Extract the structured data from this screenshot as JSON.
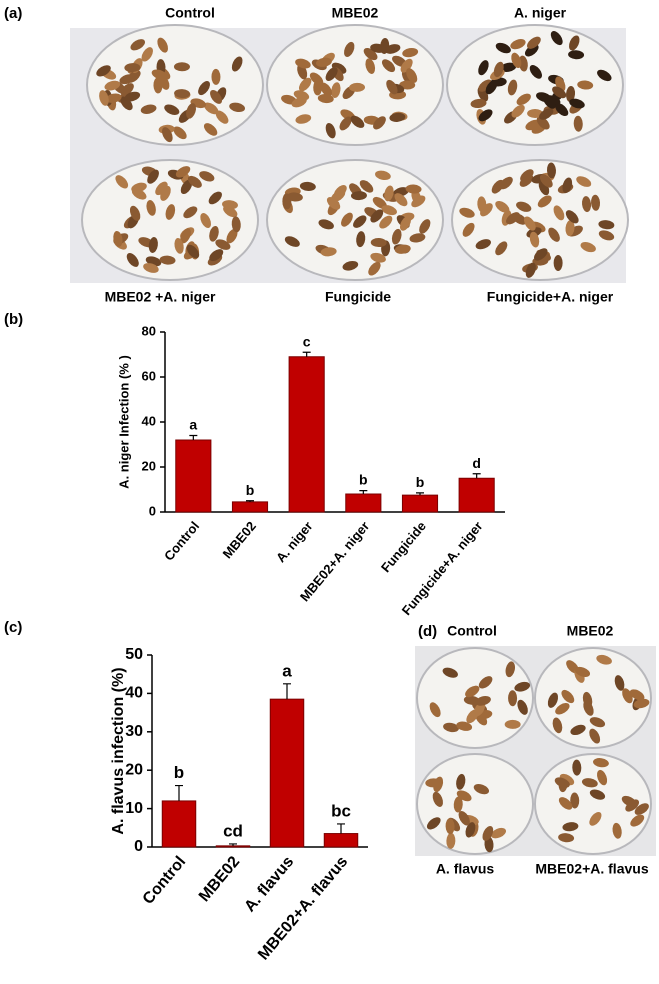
{
  "panel_a": {
    "label": "(a)",
    "top_labels": [
      "Control",
      "MBE02",
      "A. niger"
    ],
    "bottom_labels": [
      "MBE02 +A. niger",
      "Fungicide",
      "Fungicide+A. niger"
    ]
  },
  "panel_b": {
    "label": "(b)"
  },
  "panel_c": {
    "label": "(c)"
  },
  "panel_d": {
    "label": "(d)",
    "top_labels": [
      "Control",
      "MBE02"
    ],
    "bottom_labels": [
      "A. flavus",
      "MBE02+A. flavus"
    ]
  },
  "chart_data": [
    {
      "type": "bar",
      "ylabel": "A. niger Infection (% )",
      "categories": [
        "Control",
        "MBE02",
        "A. niger",
        "MBE02+A. niger",
        "Fungicide",
        "Fungicide+A. niger"
      ],
      "values": [
        32,
        4.5,
        69,
        8,
        7.5,
        15
      ],
      "errors": [
        2,
        0.5,
        2,
        1.5,
        1,
        2
      ],
      "annotations": [
        "a",
        "b",
        "c",
        "b",
        "b",
        "d"
      ],
      "color": "#c00000",
      "ylim": [
        0,
        80
      ],
      "yticks": [
        0,
        20,
        40,
        60,
        80
      ]
    },
    {
      "type": "bar",
      "ylabel": "A. flavus infection (%)",
      "categories": [
        "Control",
        "MBE02",
        "A. flavus",
        "MBE02+A. flavus"
      ],
      "values": [
        12,
        0.3,
        38.5,
        3.5
      ],
      "errors": [
        4,
        0.5,
        4,
        2.5
      ],
      "annotations": [
        "b",
        "cd",
        "a",
        "bc"
      ],
      "color": "#c00000",
      "ylim": [
        0,
        50
      ],
      "yticks": [
        0,
        10,
        20,
        30,
        40,
        50
      ]
    }
  ]
}
